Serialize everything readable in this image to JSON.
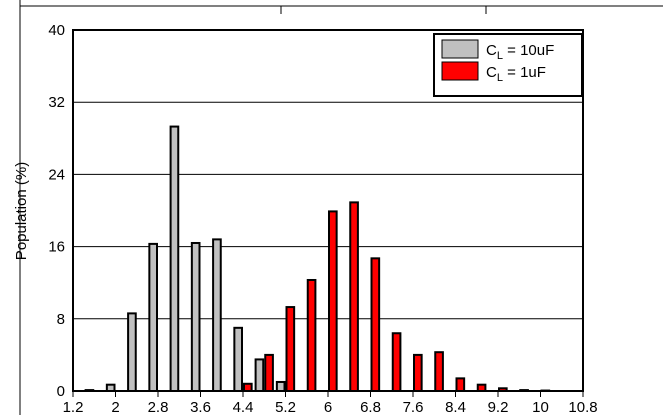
{
  "chart_data": {
    "type": "bar",
    "ylabel": "Population (%)",
    "xlabel": "",
    "ylim": [
      0,
      40
    ],
    "yticks": [
      0,
      8,
      16,
      24,
      32,
      40
    ],
    "xticks": [
      "1.2",
      "2",
      "2.8",
      "3.6",
      "4.4",
      "5.2",
      "6",
      "6.8",
      "7.6",
      "8.4",
      "9.2",
      "10",
      "10.8"
    ],
    "grid": "horizontal",
    "legend_position": "top-right",
    "categories": [
      "1.2",
      "1.6",
      "2",
      "2.4",
      "2.8",
      "3.2",
      "3.6",
      "4",
      "4.4",
      "4.8",
      "5.2",
      "5.6",
      "6",
      "6.4",
      "6.8",
      "7.2",
      "7.6",
      "8",
      "8.4",
      "8.8",
      "9.2",
      "9.6",
      "10",
      "10.4",
      "10.8"
    ],
    "series": [
      {
        "name": "CL = 10uF",
        "label_main": "C",
        "label_sub": "L",
        "label_rest": " = 10uF",
        "color": "#c0c0c0",
        "values": [
          0,
          0.1,
          0.7,
          8.6,
          16.3,
          29.3,
          16.4,
          16.8,
          7.0,
          3.5,
          1.0,
          0,
          0,
          0,
          0,
          0,
          0,
          0,
          0,
          0,
          0,
          0,
          0,
          0,
          0
        ]
      },
      {
        "name": "CL = 1uF",
        "label_main": "C",
        "label_sub": "L",
        "label_rest": " = 1uF",
        "color": "#ff0000",
        "values": [
          0,
          0,
          0,
          0,
          0,
          0,
          0,
          0,
          0.8,
          4.0,
          9.3,
          12.3,
          19.9,
          20.9,
          14.7,
          6.4,
          4.0,
          4.3,
          1.4,
          0.7,
          0.3,
          0.1,
          0.05,
          0,
          0
        ]
      }
    ]
  }
}
